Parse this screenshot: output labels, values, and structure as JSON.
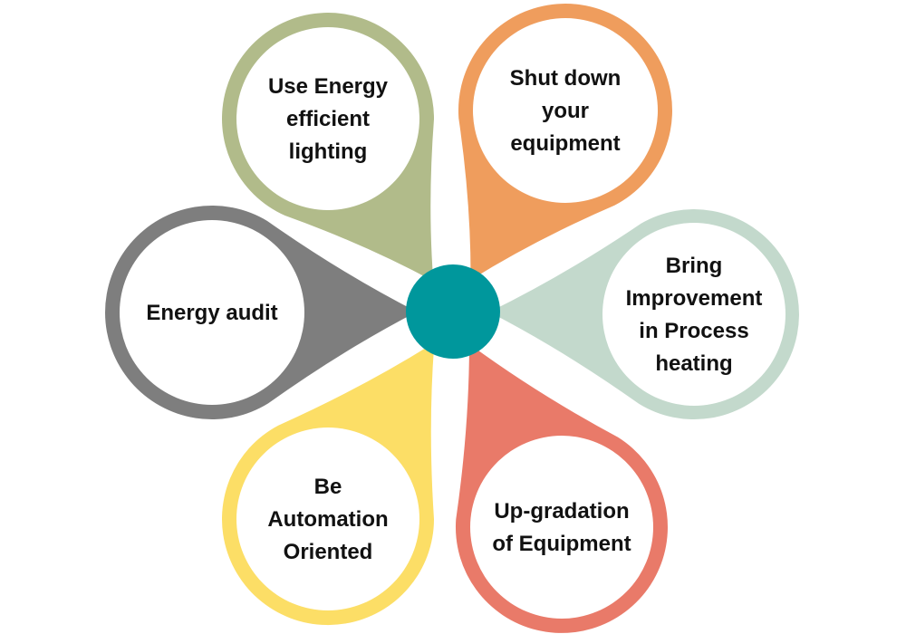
{
  "diagram": {
    "center_color": "#00979C",
    "petals": [
      {
        "id": "lighting",
        "lines": [
          "Use Energy",
          "efficient",
          "lighting"
        ],
        "color": "#B1BB8A"
      },
      {
        "id": "shutdown",
        "lines": [
          "Shut down",
          "your",
          "equipment"
        ],
        "color": "#EF9D5D"
      },
      {
        "id": "process",
        "lines": [
          "Bring",
          "Improvement",
          "in Process",
          "heating"
        ],
        "color": "#C3D9CC"
      },
      {
        "id": "upgrade",
        "lines": [
          "Up-gradation",
          "of Equipment"
        ],
        "color": "#E97A69"
      },
      {
        "id": "automation",
        "lines": [
          "Be",
          "Automation",
          "Oriented"
        ],
        "color": "#FCDE66"
      },
      {
        "id": "audit",
        "lines": [
          "Energy audit"
        ],
        "color": "#7E7E7E"
      }
    ]
  }
}
